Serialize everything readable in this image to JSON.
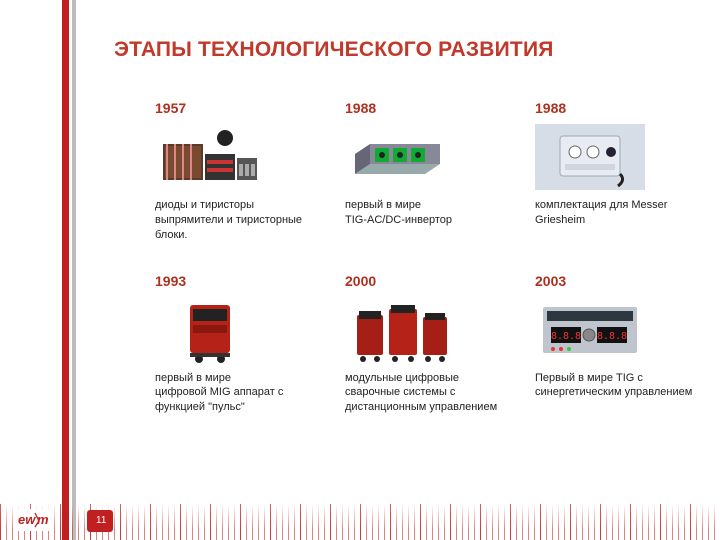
{
  "title": "ЭТАПЫ ТЕХНОЛОГИЧЕСКОГО РАЗВИТИЯ",
  "page_number": "11",
  "colors": {
    "accent": "#c02020",
    "accent_dark": "#b03020",
    "title": "#c0392b",
    "text": "#222222",
    "gray_stripe": "#bcbcbc",
    "background": "#ffffff"
  },
  "logo": {
    "text": "ewm",
    "bg": "#ffffff",
    "color": "#c02020"
  },
  "items": [
    {
      "year": "1957",
      "desc": "диоды и тиристоры\nвыпрямители и тиристорные блоки.",
      "icon": "components"
    },
    {
      "year": "1988",
      "desc": "первый в мире\nTIG-AC/DC-инвертор",
      "icon": "inverter"
    },
    {
      "year": "1988",
      "desc": "комплектация для Messer Griesheim",
      "icon": "unit"
    },
    {
      "year": "1993",
      "desc": "первый в мире\nцифровой MIG аппарат с функцией \"пульс\"",
      "icon": "mig"
    },
    {
      "year": "2000",
      "desc": "модульные цифровые сварочные системы с дистанционным управлением",
      "icon": "modular"
    },
    {
      "year": "2003",
      "desc": "Первый в мире TIG с синергетическим управлением",
      "icon": "panel"
    }
  ]
}
